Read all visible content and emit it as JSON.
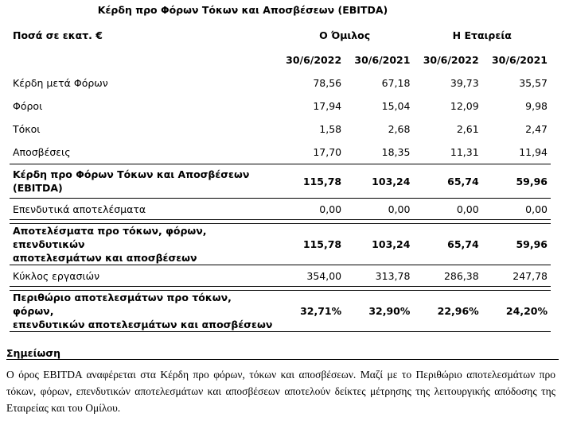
{
  "title": "Κέρδη προ Φόρων Τόκων και Αποσβέσεων (EBITDA)",
  "header": {
    "amounts_label": "Ποσά σε εκατ. €",
    "group_label": "Ο Όμιλος",
    "company_label": "Η Εταιρεία",
    "dates": [
      "30/6/2022",
      "30/6/2021",
      "30/6/2022",
      "30/6/2021"
    ]
  },
  "rows": [
    {
      "label": "Κέρδη μετά Φόρων",
      "values": [
        "78,56",
        "67,18",
        "39,73",
        "35,57"
      ]
    },
    {
      "label": "Φόροι",
      "values": [
        "17,94",
        "15,04",
        "12,09",
        "9,98"
      ]
    },
    {
      "label": "Τόκοι",
      "values": [
        "1,58",
        "2,68",
        "2,61",
        "2,47"
      ]
    },
    {
      "label": "Αποσβέσεις",
      "values": [
        "17,70",
        "18,35",
        "11,31",
        "11,94"
      ]
    },
    {
      "label_lines": [
        "Κέρδη προ Φόρων Τόκων και Αποσβέσεων",
        "(EBITDA)"
      ],
      "values": [
        "115,78",
        "103,24",
        "65,74",
        "59,96"
      ]
    },
    {
      "label": "Επενδυτικά αποτελέσματα",
      "values": [
        "0,00",
        "0,00",
        "0,00",
        "0,00"
      ]
    },
    {
      "label_lines": [
        "Αποτελέσματα προ τόκων, φόρων,  επενδυτικών",
        "αποτελεσμάτων και αποσβέσεων"
      ],
      "values": [
        "115,78",
        "103,24",
        "65,74",
        "59,96"
      ]
    },
    {
      "label": "Κύκλος εργασιών",
      "values": [
        "354,00",
        "313,78",
        "286,38",
        "247,78"
      ]
    },
    {
      "label_lines": [
        "Περιθώριο αποτελεσμάτων προ τόκων, φόρων,",
        "επενδυτικών αποτελεσμάτων και αποσβέσεων"
      ],
      "values": [
        "32,71%",
        "32,90%",
        "22,96%",
        "24,20%"
      ]
    }
  ],
  "note": {
    "heading": "Σημείωση",
    "text": "Ο όρος EBITDA  αναφέρεται στα Κέρδη προ φόρων, τόκων και αποσβέσεων. Μαζί με το Περιθώριο αποτελεσμάτων προ τόκων, φόρων, επενδυτικών αποτελεσμάτων και αποσβέσεων αποτελούν δείκτες μέτρησης της λειτουργικής απόδοσης της Εταιρείας και του Ομίλου."
  }
}
